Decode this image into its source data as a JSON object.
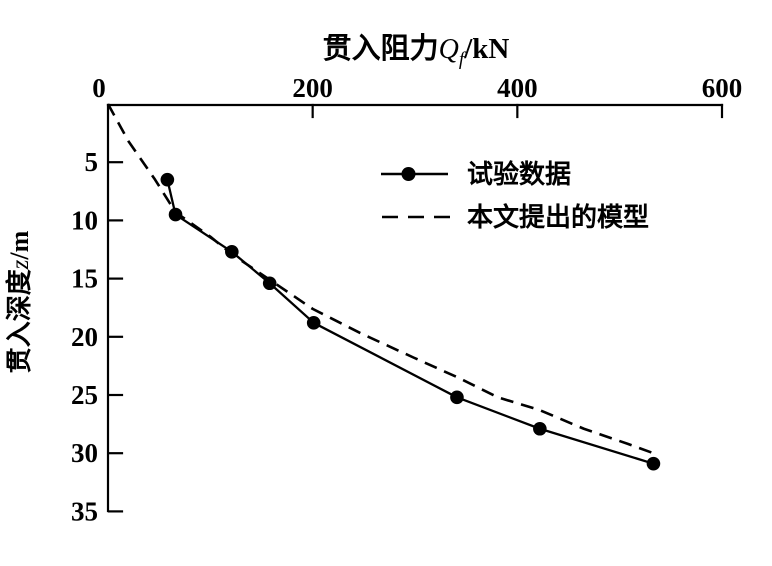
{
  "figure": {
    "background_color": "#ffffff",
    "ink_color": "#000000"
  },
  "chart_data": {
    "type": "line",
    "title_parts": {
      "prefix": "贯入阻力",
      "var": "Q",
      "sub": "f",
      "suffix": "/kN"
    },
    "ylabel_parts": {
      "prefix": "贯入深度",
      "var": "z",
      "suffix": "/m"
    },
    "x_axis": {
      "side": "top",
      "min": 0,
      "max": 600,
      "ticks": [
        0,
        200,
        400,
        600
      ]
    },
    "y_axis": {
      "side": "left",
      "direction": "down",
      "min": 0,
      "max": 35,
      "ticks": [
        5,
        10,
        15,
        20,
        25,
        30,
        35
      ]
    },
    "grid": false,
    "legend": {
      "position": "inside-upper-right"
    },
    "series": [
      {
        "name": "试验数据",
        "style": "solid-with-markers",
        "marker": "filled-circle",
        "color": "#000000",
        "points": [
          [
            58,
            6.5
          ],
          [
            66,
            9.5
          ],
          [
            121,
            12.7
          ],
          [
            158,
            15.4
          ],
          [
            201,
            18.8
          ],
          [
            341,
            25.2
          ],
          [
            422,
            27.9
          ],
          [
            533,
            30.9
          ]
        ]
      },
      {
        "name": "本文提出的模型",
        "style": "dashed",
        "marker": "none",
        "color": "#000000",
        "points": [
          [
            0,
            0
          ],
          [
            20,
            3.2
          ],
          [
            46,
            6.5
          ],
          [
            66,
            9.3
          ],
          [
            100,
            11.4
          ],
          [
            121,
            12.9
          ],
          [
            158,
            15.1
          ],
          [
            200,
            17.6
          ],
          [
            247,
            19.7
          ],
          [
            299,
            21.8
          ],
          [
            342,
            23.5
          ],
          [
            381,
            25.2
          ],
          [
            422,
            26.3
          ],
          [
            465,
            27.9
          ],
          [
            508,
            29.2
          ],
          [
            533,
            30.0
          ]
        ]
      }
    ]
  }
}
